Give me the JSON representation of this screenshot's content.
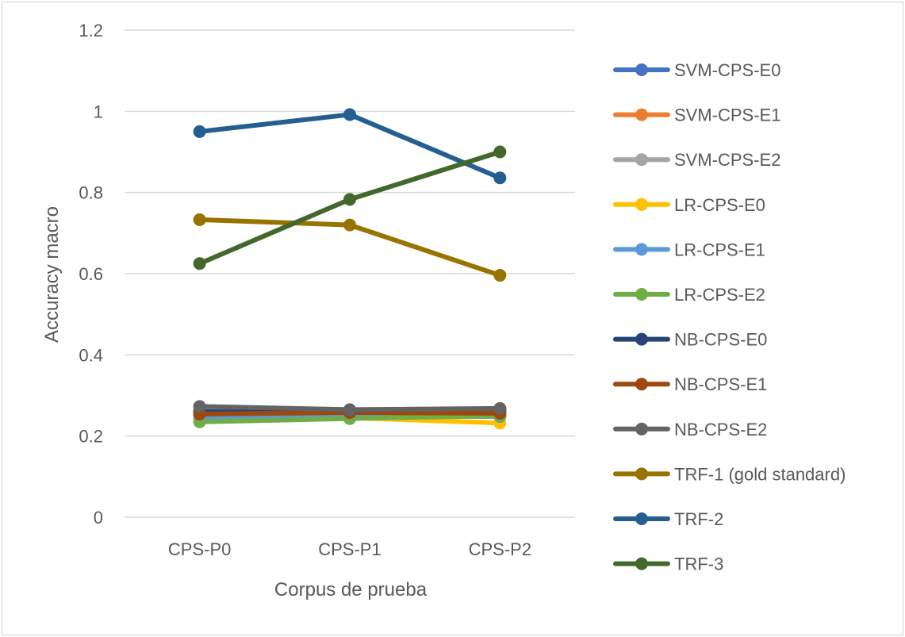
{
  "chart_data": {
    "type": "line",
    "title": "",
    "xlabel": "Corpus de prueba",
    "ylabel": "Accuracy macro",
    "categories": [
      "CPS-P0",
      "CPS-P1",
      "CPS-P2"
    ],
    "ylim": [
      0,
      1.2
    ],
    "yticks": [
      0,
      0.2,
      0.4,
      0.6,
      0.8,
      1,
      1.2
    ],
    "ytick_labels": [
      "0",
      "0.2",
      "0.4",
      "0.6",
      "0.8",
      "1",
      "1.2"
    ],
    "grid": true,
    "legend_position": "right",
    "series": [
      {
        "name": "SVM-CPS-E0",
        "color": "#4472c4",
        "values": [
          0.255,
          0.258,
          0.262
        ]
      },
      {
        "name": "SVM-CPS-E1",
        "color": "#ed7d31",
        "values": [
          0.252,
          0.256,
          0.258
        ]
      },
      {
        "name": "SVM-CPS-E2",
        "color": "#a5a5a5",
        "values": [
          0.262,
          0.262,
          0.266
        ]
      },
      {
        "name": "LR-CPS-E0",
        "color": "#ffc000",
        "values": [
          0.24,
          0.245,
          0.232
        ]
      },
      {
        "name": "LR-CPS-E1",
        "color": "#5b9bd5",
        "values": [
          0.245,
          0.25,
          0.248
        ]
      },
      {
        "name": "LR-CPS-E2",
        "color": "#70ad47",
        "values": [
          0.235,
          0.243,
          0.25
        ]
      },
      {
        "name": "NB-CPS-E0",
        "color": "#264478",
        "values": [
          0.26,
          0.258,
          0.262
        ]
      },
      {
        "name": "NB-CPS-E1",
        "color": "#9e480e",
        "values": [
          0.254,
          0.258,
          0.256
        ]
      },
      {
        "name": "NB-CPS-E2",
        "color": "#636363",
        "values": [
          0.273,
          0.265,
          0.268
        ]
      },
      {
        "name": "TRF-1 (gold standard)",
        "color": "#997300",
        "values": [
          0.733,
          0.72,
          0.596
        ]
      },
      {
        "name": "TRF-2",
        "color": "#255e91",
        "values": [
          0.95,
          0.992,
          0.836
        ]
      },
      {
        "name": "TRF-3",
        "color": "#43682b",
        "values": [
          0.625,
          0.783,
          0.9
        ]
      }
    ]
  }
}
